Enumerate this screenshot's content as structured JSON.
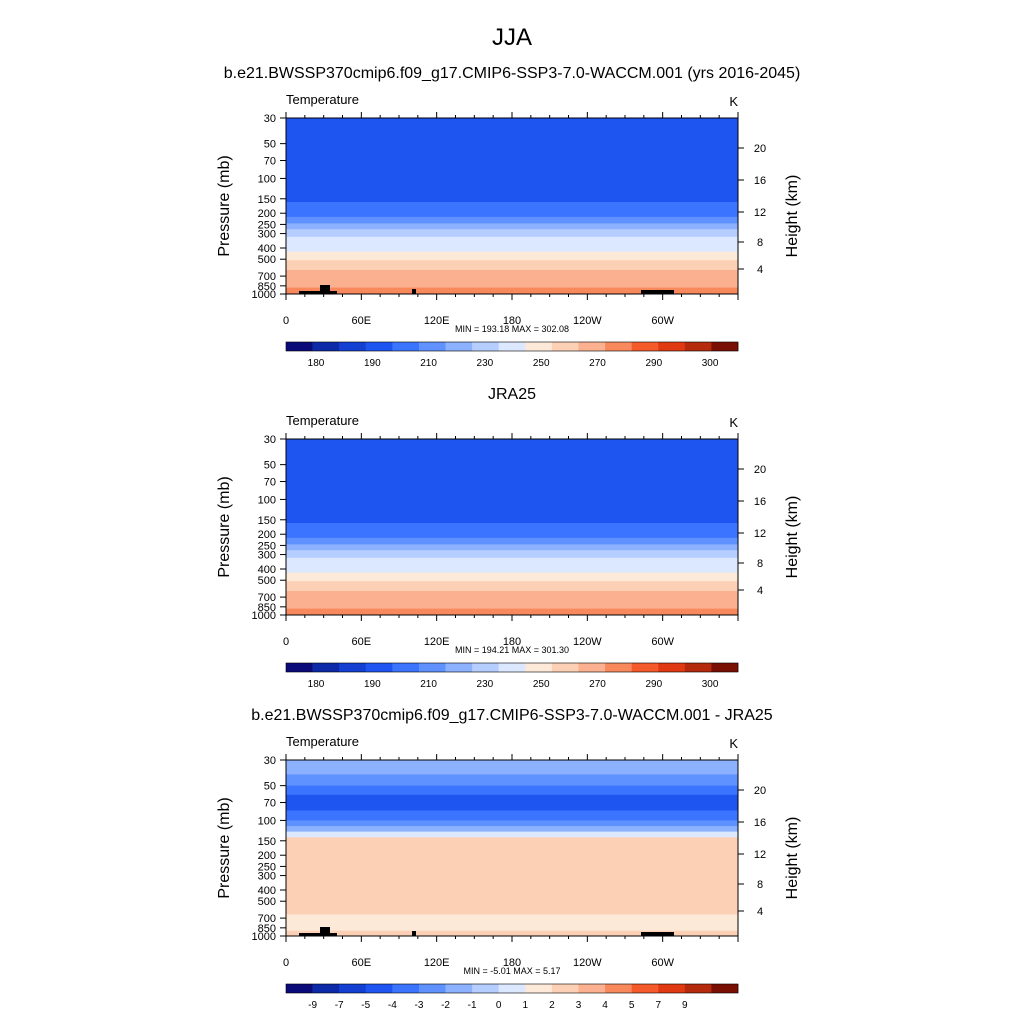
{
  "main_title": "JJA",
  "colors": {
    "temperature_palette": [
      "#0a0a78",
      "#0c2aa8",
      "#1340d0",
      "#1e55f0",
      "#3a74ff",
      "#5f92ff",
      "#8cb2ff",
      "#b5cdff",
      "#dbe8ff",
      "#fde9d8",
      "#fcd0b4",
      "#fbb190",
      "#f7895d",
      "#f45a2a",
      "#e03a12",
      "#b52a0c",
      "#7a1004"
    ],
    "difference_palette": [
      "#0a0a78",
      "#0c2aa8",
      "#1340d0",
      "#1e55f0",
      "#3a74ff",
      "#5f92ff",
      "#8cb2ff",
      "#b5cdff",
      "#dbe8ff",
      "#fde9d8",
      "#fcd0b4",
      "#fbb190",
      "#f7895d",
      "#f45a2a",
      "#e03a12",
      "#b52a0c",
      "#7a1004"
    ],
    "topography": "#000000"
  },
  "chart_data": [
    {
      "type": "heatmap",
      "title": "b.e21.BWSSP370cmip6.f09_g17.CMIP6-SSP3-7.0-WACCM.001 (yrs 2016-2045)",
      "left_label": "Temperature",
      "units": "K",
      "ylabel": "Pressure (mb)",
      "ylabel_right": "Height (km)",
      "xlabel": "",
      "x_ticks": [
        "0",
        "60E",
        "120E",
        "180",
        "120W",
        "60W"
      ],
      "y_ticks": [
        "30",
        "50",
        "70",
        "100",
        "150",
        "200",
        "250",
        "300",
        "400",
        "500",
        "700",
        "850",
        "1000"
      ],
      "y_ticks_right": [
        "20",
        "16",
        "12",
        "8",
        "4"
      ],
      "ylim": [
        1000,
        30
      ],
      "y_scale": "log",
      "stats": "MIN = 193.18  MAX = 302.08",
      "colorbar_labels": [
        "180",
        "190",
        "210",
        "230",
        "250",
        "270",
        "290",
        "300"
      ],
      "levels": [
        {
          "p_top": 30,
          "p_bot": 45,
          "value": 209
        },
        {
          "p_top": 45,
          "p_bot": 62,
          "value": 205
        },
        {
          "p_top": 62,
          "p_bot": 135,
          "value": 200
        },
        {
          "p_top": 135,
          "p_bot": 160,
          "value": 205
        },
        {
          "p_top": 160,
          "p_bot": 185,
          "value": 210
        },
        {
          "p_top": 185,
          "p_bot": 215,
          "value": 215
        },
        {
          "p_top": 215,
          "p_bot": 245,
          "value": 220
        },
        {
          "p_top": 245,
          "p_bot": 275,
          "value": 230
        },
        {
          "p_top": 275,
          "p_bot": 320,
          "value": 240
        },
        {
          "p_top": 320,
          "p_bot": 370,
          "value": 250
        },
        {
          "p_top": 370,
          "p_bot": 430,
          "value": 255
        },
        {
          "p_top": 430,
          "p_bot": 510,
          "value": 262
        },
        {
          "p_top": 510,
          "p_bot": 620,
          "value": 270
        },
        {
          "p_top": 620,
          "p_bot": 760,
          "value": 280
        },
        {
          "p_top": 760,
          "p_bot": 880,
          "value": 288
        },
        {
          "p_top": 880,
          "p_bot": 1000,
          "value": 295
        }
      ],
      "topography": true
    },
    {
      "type": "heatmap",
      "title": "JRA25",
      "left_label": "Temperature",
      "units": "K",
      "ylabel": "Pressure (mb)",
      "ylabel_right": "Height (km)",
      "xlabel": "",
      "x_ticks": [
        "0",
        "60E",
        "120E",
        "180",
        "120W",
        "60W"
      ],
      "y_ticks": [
        "30",
        "50",
        "70",
        "100",
        "150",
        "200",
        "250",
        "300",
        "400",
        "500",
        "700",
        "850",
        "1000"
      ],
      "y_ticks_right": [
        "20",
        "16",
        "12",
        "8",
        "4"
      ],
      "ylim": [
        1000,
        30
      ],
      "y_scale": "log",
      "stats": "MIN = 194.21  MAX = 301.30",
      "colorbar_labels": [
        "180",
        "190",
        "210",
        "230",
        "250",
        "270",
        "290",
        "300"
      ],
      "levels": [
        {
          "p_top": 30,
          "p_bot": 45,
          "value": 209
        },
        {
          "p_top": 45,
          "p_bot": 62,
          "value": 205
        },
        {
          "p_top": 62,
          "p_bot": 135,
          "value": 200
        },
        {
          "p_top": 135,
          "p_bot": 160,
          "value": 205
        },
        {
          "p_top": 160,
          "p_bot": 185,
          "value": 210
        },
        {
          "p_top": 185,
          "p_bot": 215,
          "value": 215
        },
        {
          "p_top": 215,
          "p_bot": 245,
          "value": 220
        },
        {
          "p_top": 245,
          "p_bot": 275,
          "value": 230
        },
        {
          "p_top": 275,
          "p_bot": 320,
          "value": 240
        },
        {
          "p_top": 320,
          "p_bot": 370,
          "value": 250
        },
        {
          "p_top": 370,
          "p_bot": 430,
          "value": 255
        },
        {
          "p_top": 430,
          "p_bot": 510,
          "value": 262
        },
        {
          "p_top": 510,
          "p_bot": 620,
          "value": 270
        },
        {
          "p_top": 620,
          "p_bot": 760,
          "value": 280
        },
        {
          "p_top": 760,
          "p_bot": 880,
          "value": 288
        },
        {
          "p_top": 880,
          "p_bot": 1000,
          "value": 295
        }
      ],
      "topography": false
    },
    {
      "type": "heatmap",
      "title": "b.e21.BWSSP370cmip6.f09_g17.CMIP6-SSP3-7.0-WACCM.001 - JRA25",
      "left_label": "Temperature",
      "units": "K",
      "ylabel": "Pressure (mb)",
      "ylabel_right": "Height (km)",
      "xlabel": "",
      "x_ticks": [
        "0",
        "60E",
        "120E",
        "180",
        "120W",
        "60W"
      ],
      "y_ticks": [
        "30",
        "50",
        "70",
        "100",
        "150",
        "200",
        "250",
        "300",
        "400",
        "500",
        "700",
        "850",
        "1000"
      ],
      "y_ticks_right": [
        "20",
        "16",
        "12",
        "8",
        "4"
      ],
      "ylim": [
        1000,
        30
      ],
      "y_scale": "log",
      "stats": "MIN =  -5.01  MAX =   5.17",
      "colorbar_labels": [
        "-9",
        "-7",
        "-5",
        "-4",
        "-3",
        "-2",
        "-1",
        "0",
        "1",
        "2",
        "3",
        "4",
        "5",
        "7",
        "9"
      ],
      "levels": [
        {
          "p_top": 30,
          "p_bot": 40,
          "value": -1.5
        },
        {
          "p_top": 40,
          "p_bot": 50,
          "value": -2.5
        },
        {
          "p_top": 50,
          "p_bot": 60,
          "value": -3.5
        },
        {
          "p_top": 60,
          "p_bot": 82,
          "value": -4.5
        },
        {
          "p_top": 82,
          "p_bot": 100,
          "value": -3.5
        },
        {
          "p_top": 100,
          "p_bot": 112,
          "value": -2.5
        },
        {
          "p_top": 112,
          "p_bot": 125,
          "value": -1.5
        },
        {
          "p_top": 125,
          "p_bot": 140,
          "value": 0.5
        },
        {
          "p_top": 140,
          "p_bot": 650,
          "value": 2.5
        },
        {
          "p_top": 650,
          "p_bot": 900,
          "value": 1.5
        },
        {
          "p_top": 900,
          "p_bot": 1000,
          "value": 2.5
        }
      ],
      "topography": true
    }
  ]
}
